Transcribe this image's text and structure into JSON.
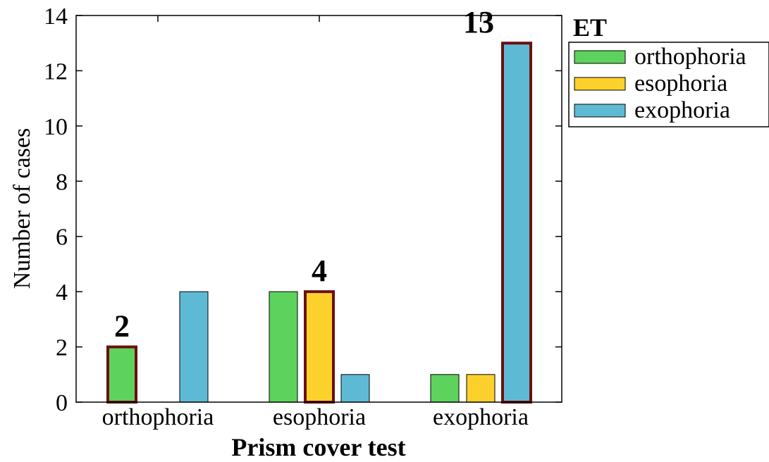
{
  "chart_data": {
    "type": "bar",
    "title": "",
    "xlabel": "Prism cover test",
    "ylabel": "Number of cases",
    "categories": [
      "orthophoria",
      "esophoria",
      "exophoria"
    ],
    "ylim": [
      0,
      14
    ],
    "yticks": [
      0,
      2,
      4,
      6,
      8,
      10,
      12,
      14
    ],
    "grid": false,
    "legend": {
      "title": "ET",
      "position": "right-outside-top"
    },
    "series": [
      {
        "name": "orthophoria",
        "color": "#5dd35d",
        "values": [
          2,
          4,
          1
        ]
      },
      {
        "name": "esophoria",
        "color": "#fdd12c",
        "values": [
          0,
          4,
          1
        ]
      },
      {
        "name": "exophoria",
        "color": "#5ebad4",
        "values": [
          4,
          1,
          13
        ]
      }
    ],
    "highlights": [
      {
        "category": "orthophoria",
        "series": "orthophoria",
        "label": "2"
      },
      {
        "category": "esophoria",
        "series": "esophoria",
        "label": "4"
      },
      {
        "category": "exophoria",
        "series": "exophoria",
        "label": "13"
      }
    ],
    "highlight_color": "#6b0f0f"
  }
}
